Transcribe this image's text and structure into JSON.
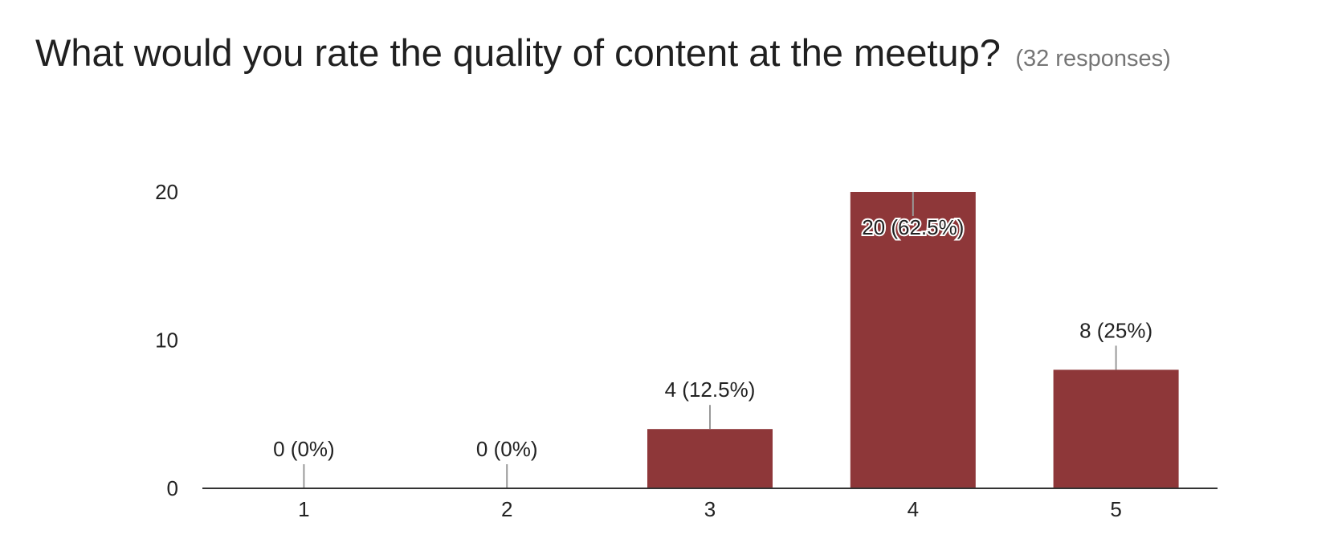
{
  "header": {
    "question": "What would you rate the quality of content at the meetup?",
    "responses": "(32 responses)"
  },
  "colors": {
    "bar": "#8e3739",
    "axis": "#333333",
    "leader": "#999999"
  },
  "chart_data": {
    "type": "bar",
    "title": "What would you rate the quality of content at the meetup?",
    "subtitle": "(32 responses)",
    "xlabel": "",
    "ylabel": "",
    "categories": [
      "1",
      "2",
      "3",
      "4",
      "5"
    ],
    "values": [
      0,
      0,
      4,
      20,
      8
    ],
    "data_labels": [
      "0 (0%)",
      "0 (0%)",
      "4 (12.5%)",
      "20 (62.5%)",
      "8 (25%)"
    ],
    "ylim": [
      0,
      20
    ],
    "yticks": [
      0,
      10,
      20
    ],
    "grid": false,
    "legend": "none"
  }
}
